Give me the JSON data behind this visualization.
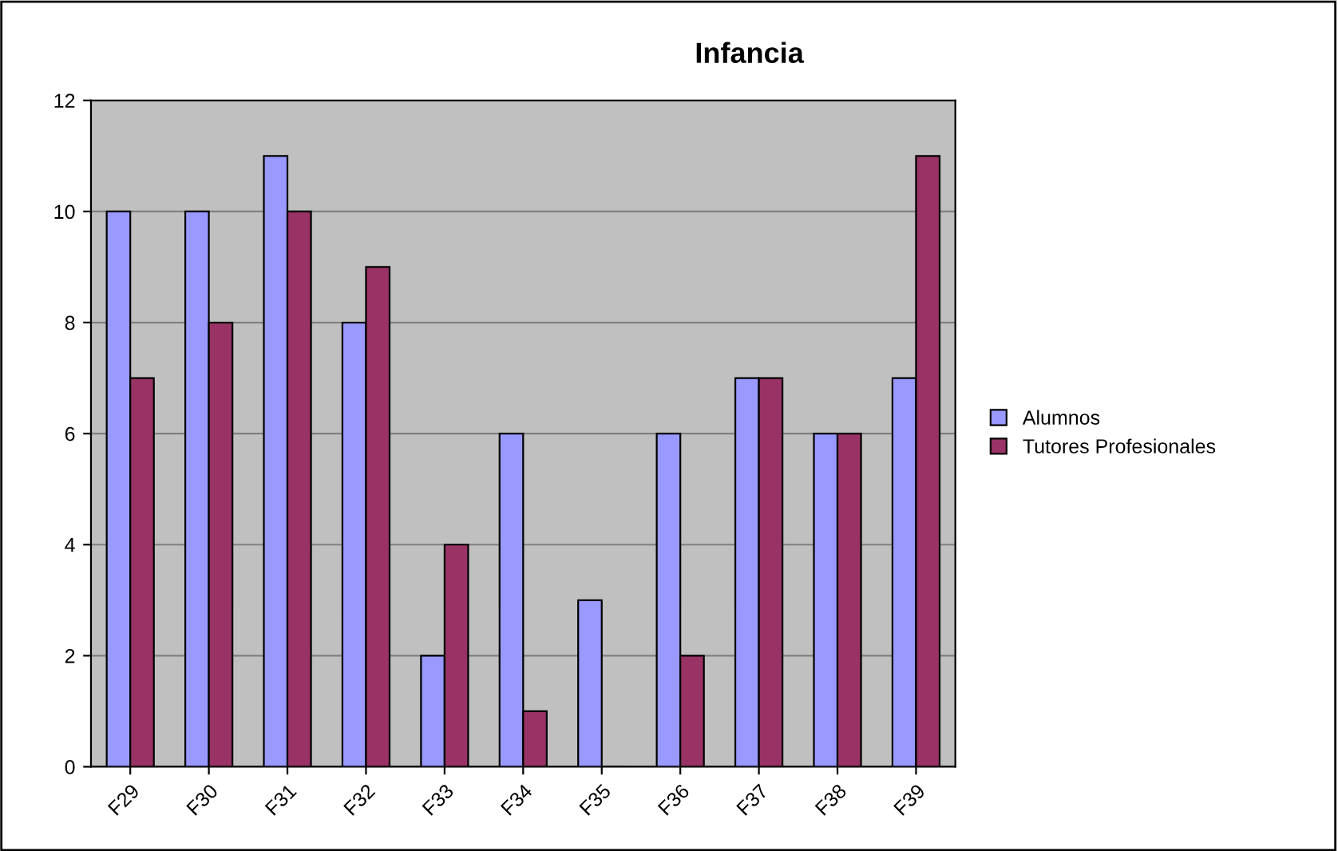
{
  "chart_data": {
    "type": "bar",
    "title": "Infancia",
    "categories": [
      "F29",
      "F30",
      "F31",
      "F32",
      "F33",
      "F34",
      "F35",
      "F36",
      "F37",
      "F38",
      "F39"
    ],
    "series": [
      {
        "name": "Alumnos",
        "color": "#9999ff",
        "values": [
          10,
          10,
          11,
          8,
          2,
          6,
          3,
          6,
          7,
          6,
          7
        ]
      },
      {
        "name": "Tutores Profesionales",
        "color": "#993366",
        "values": [
          7,
          8,
          10,
          9,
          4,
          1,
          0,
          2,
          7,
          6,
          11
        ]
      }
    ],
    "ylim": [
      0,
      12
    ],
    "yticks": [
      0,
      2,
      4,
      6,
      8,
      10,
      12
    ],
    "grid": "y",
    "legend": "right"
  }
}
